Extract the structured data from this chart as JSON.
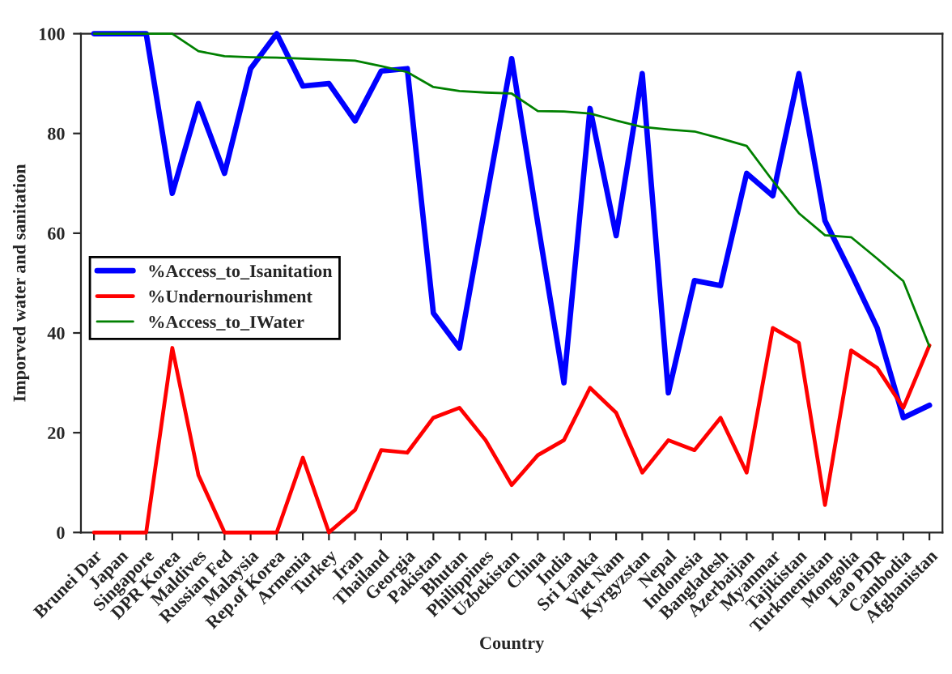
{
  "chart_data": {
    "type": "line",
    "xlabel": "Country",
    "ylabel": "Imporved water and sanitation",
    "categories": [
      "Brunei Dar",
      "Japan",
      "Singapore",
      "DPR Korea",
      "Maldives",
      "Russian Fed",
      "Malaysia",
      "Rep.of Korea",
      "Armenia",
      "Turkey",
      "Iran",
      "Thailand",
      "Georgia",
      "Pakistan",
      "Bhutan",
      "Philippines",
      "Uzbekistan",
      "China",
      "India",
      "Sri Lanka",
      "Viet Nam",
      "Kyrgyzstan",
      "Nepal",
      "Indonesia",
      "Bangladesh",
      "Azerbaijan",
      "Myanmar",
      "Tajikistan",
      "Turkmenistan",
      "Mongolia",
      "Lao PDR",
      "Cambodia",
      "Afghanistan"
    ],
    "series": [
      {
        "name": "%Access_to_Isanitation",
        "color": "#0000ff",
        "values": [
          100,
          100,
          100,
          68,
          86,
          72,
          93,
          100,
          89.5,
          90,
          82.5,
          92.5,
          93,
          44,
          37,
          66,
          95,
          62,
          30,
          85,
          59.5,
          92,
          28,
          50.5,
          49.5,
          72,
          67.5,
          92,
          62.5,
          52,
          41,
          23,
          25.5
        ]
      },
      {
        "name": "%Undernourishment",
        "color": "#ff0000",
        "values": [
          0,
          0,
          0,
          37,
          11.5,
          0,
          0,
          0,
          15,
          0,
          4.5,
          16.5,
          16,
          23,
          25,
          18.5,
          9.5,
          15.5,
          18.5,
          29,
          24,
          12,
          18.5,
          16.5,
          23,
          12,
          41,
          38,
          5.5,
          36.5,
          33,
          25,
          37.5
        ]
      },
      {
        "name": "%Access_to_IWater",
        "color": "#008000",
        "values": [
          100,
          100,
          100,
          100,
          96.5,
          95.5,
          95.3,
          95.2,
          95,
          94.8,
          94.6,
          93.5,
          92.3,
          89.3,
          88.5,
          88.2,
          88,
          84.5,
          84.4,
          84,
          82.6,
          81.3,
          80.8,
          80.4,
          79,
          77.5,
          70.5,
          64,
          59.6,
          59.2,
          54.9,
          50.4,
          37.3
        ]
      }
    ],
    "ylim": [
      0,
      100
    ],
    "yticks": [
      0,
      20,
      40,
      60,
      80,
      100
    ],
    "grid": false,
    "legend": "left",
    "marker": "none",
    "line_style": "solid"
  }
}
